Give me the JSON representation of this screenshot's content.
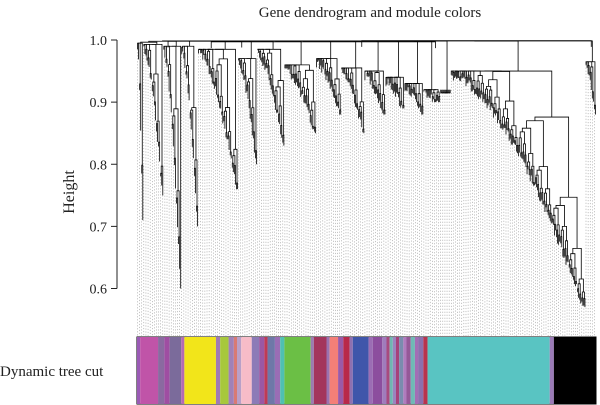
{
  "chart_data": {
    "type": "dendrogram",
    "title": "Gene dendrogram and module colors",
    "ylabel": "Height",
    "y_ticks": [
      1.0,
      0.9,
      0.8,
      0.7,
      0.6
    ],
    "y_tick_labels": [
      "1.0",
      "0.9",
      "0.8",
      "0.7",
      "0.6"
    ],
    "ylim": [
      0.53,
      1.0
    ],
    "grid": false,
    "color_row_label": "Dynamic tree cut",
    "leaf_count": 436,
    "clusters": [
      {
        "leaf_start": 0,
        "leaf_end": 6,
        "merge_height": 0.995,
        "floor": 0.71
      },
      {
        "leaf_start": 6,
        "leaf_end": 25,
        "merge_height": 0.993,
        "floor": 0.75
      },
      {
        "leaf_start": 25,
        "leaf_end": 42,
        "merge_height": 0.99,
        "floor": 0.6
      },
      {
        "leaf_start": 42,
        "leaf_end": 58,
        "merge_height": 0.99,
        "floor": 0.7
      },
      {
        "leaf_start": 58,
        "leaf_end": 96,
        "merge_height": 0.985,
        "floor": 0.76
      },
      {
        "leaf_start": 96,
        "leaf_end": 114,
        "merge_height": 0.97,
        "floor": 0.8
      },
      {
        "leaf_start": 114,
        "leaf_end": 140,
        "merge_height": 0.985,
        "floor": 0.83
      },
      {
        "leaf_start": 140,
        "leaf_end": 170,
        "merge_height": 0.96,
        "floor": 0.85
      },
      {
        "leaf_start": 170,
        "leaf_end": 194,
        "merge_height": 0.97,
        "floor": 0.88
      },
      {
        "leaf_start": 194,
        "leaf_end": 216,
        "merge_height": 0.955,
        "floor": 0.85
      },
      {
        "leaf_start": 216,
        "leaf_end": 236,
        "merge_height": 0.95,
        "floor": 0.88
      },
      {
        "leaf_start": 236,
        "leaf_end": 254,
        "merge_height": 0.94,
        "floor": 0.89
      },
      {
        "leaf_start": 254,
        "leaf_end": 272,
        "merge_height": 0.93,
        "floor": 0.88
      },
      {
        "leaf_start": 272,
        "leaf_end": 288,
        "merge_height": 0.92,
        "floor": 0.9
      },
      {
        "leaf_start": 288,
        "leaf_end": 298,
        "merge_height": 0.915,
        "floor": 0.92
      },
      {
        "leaf_start": 298,
        "leaf_end": 426,
        "merge_height": 0.95,
        "floor": 0.57
      },
      {
        "leaf_start": 426,
        "leaf_end": 436,
        "merge_height": 0.965,
        "floor": 0.88
      }
    ],
    "root_merges": [
      {
        "left": [
          0,
          58
        ],
        "right": [
          58,
          140
        ],
        "height": 0.998
      },
      {
        "left": [
          0,
          140
        ],
        "right": [
          140,
          426
        ],
        "height": 0.997
      },
      {
        "left": [
          0,
          426
        ],
        "right": [
          426,
          436
        ],
        "height": 0.999
      }
    ],
    "module_colors": [
      {
        "color": "#9a5ab5",
        "from": 0,
        "to": 3
      },
      {
        "color": "#c054a8",
        "from": 3,
        "to": 20
      },
      {
        "color": "#8a6aa0",
        "from": 20,
        "to": 26
      },
      {
        "color": "#9f4ea2",
        "from": 26,
        "to": 31
      },
      {
        "color": "#7b6b9b",
        "from": 31,
        "to": 42
      },
      {
        "color": "#b46ab4",
        "from": 42,
        "to": 45
      },
      {
        "color": "#f2e51a",
        "from": 45,
        "to": 75
      },
      {
        "color": "#9f7bb4",
        "from": 75,
        "to": 79
      },
      {
        "color": "#a7c83c",
        "from": 79,
        "to": 87
      },
      {
        "color": "#a081b8",
        "from": 87,
        "to": 92
      },
      {
        "color": "#d97a74",
        "from": 92,
        "to": 95
      },
      {
        "color": "#b9a0c8",
        "from": 95,
        "to": 99
      },
      {
        "color": "#f7bcc8",
        "from": 99,
        "to": 109
      },
      {
        "color": "#8c7bb7",
        "from": 109,
        "to": 116
      },
      {
        "color": "#9a58a4",
        "from": 116,
        "to": 121
      },
      {
        "color": "#bf3a55",
        "from": 121,
        "to": 124
      },
      {
        "color": "#6e78a8",
        "from": 124,
        "to": 131
      },
      {
        "color": "#9a6db5",
        "from": 131,
        "to": 136
      },
      {
        "color": "#4fc0b2",
        "from": 136,
        "to": 140
      },
      {
        "color": "#6bbf45",
        "from": 140,
        "to": 165
      },
      {
        "color": "#9b7cb0",
        "from": 165,
        "to": 168
      },
      {
        "color": "#a3355c",
        "from": 168,
        "to": 180
      },
      {
        "color": "#9a72b0",
        "from": 180,
        "to": 183
      },
      {
        "color": "#f47f77",
        "from": 183,
        "to": 191
      },
      {
        "color": "#9a5aa8",
        "from": 191,
        "to": 196
      },
      {
        "color": "#b8294a",
        "from": 196,
        "to": 202
      },
      {
        "color": "#8f70b0",
        "from": 202,
        "to": 205
      },
      {
        "color": "#3f56aa",
        "from": 205,
        "to": 220
      },
      {
        "color": "#9b6db4",
        "from": 220,
        "to": 224
      },
      {
        "color": "#8c4e9e",
        "from": 224,
        "to": 233
      },
      {
        "color": "#a07cbc",
        "from": 233,
        "to": 237
      },
      {
        "color": "#a84a7e",
        "from": 237,
        "to": 240
      },
      {
        "color": "#6fb7b1",
        "from": 240,
        "to": 243
      },
      {
        "color": "#9b84bf",
        "from": 243,
        "to": 246
      },
      {
        "color": "#a7427a",
        "from": 246,
        "to": 249
      },
      {
        "color": "#7a8cae",
        "from": 249,
        "to": 253
      },
      {
        "color": "#b07bbd",
        "from": 253,
        "to": 256
      },
      {
        "color": "#955898",
        "from": 256,
        "to": 260
      },
      {
        "color": "#6fb9b5",
        "from": 260,
        "to": 264
      },
      {
        "color": "#a36db5",
        "from": 264,
        "to": 267
      },
      {
        "color": "#8c6fae",
        "from": 267,
        "to": 272
      },
      {
        "color": "#b9334d",
        "from": 272,
        "to": 276
      },
      {
        "color": "#59c4c2",
        "from": 276,
        "to": 392
      },
      {
        "color": "#9a7ab6",
        "from": 392,
        "to": 396
      },
      {
        "color": "#000000",
        "from": 396,
        "to": 436
      }
    ]
  }
}
